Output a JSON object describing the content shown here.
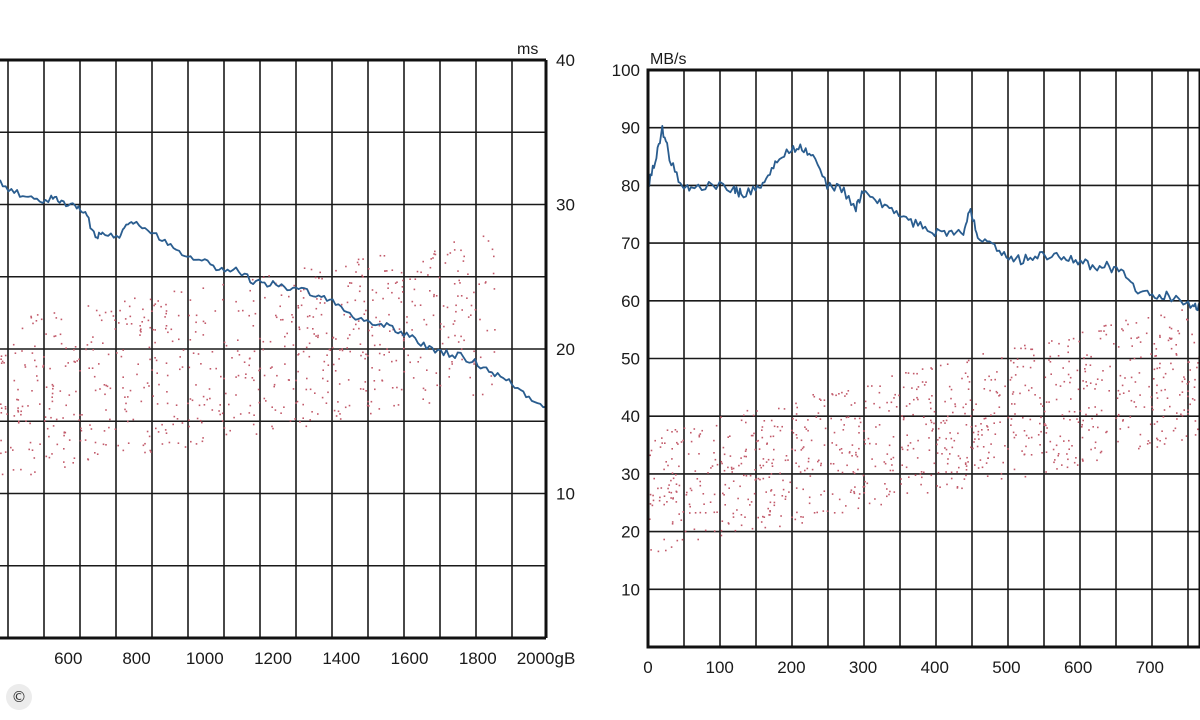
{
  "copyright_badge": "©",
  "chart_data": [
    {
      "type": "line",
      "title": "",
      "xlabel": "",
      "ylabel": "",
      "x_unit": "gB",
      "y_unit": "ms",
      "x_ticks": [
        600,
        800,
        1000,
        1200,
        1400,
        1600,
        1800,
        2000
      ],
      "x_tick_labels": [
        "600",
        "800",
        "1000",
        "1200",
        "1400",
        "1600",
        "1800",
        "2000gB"
      ],
      "highlight_tick_label": "1400",
      "xlim": [
        400,
        2000
      ],
      "y_ticks": [
        10,
        20,
        30,
        40
      ],
      "ylim": [
        0,
        40
      ],
      "y_axis_side": "right",
      "grid": true,
      "series": [
        {
          "color": "#2a5d8f",
          "style": "line",
          "x": [
            400,
            450,
            500,
            550,
            580,
            620,
            650,
            680,
            700,
            750,
            770,
            800,
            850,
            900,
            950,
            1000,
            1050,
            1100,
            1150,
            1200,
            1250,
            1300,
            1350,
            1400,
            1450,
            1500,
            1550,
            1600,
            1650,
            1700,
            1750,
            1800,
            1850,
            1900,
            1950,
            2000
          ],
          "y": [
            31.5,
            30.8,
            30.3,
            30.4,
            30.2,
            29.9,
            29.3,
            27.9,
            27.9,
            27.9,
            28.8,
            28.6,
            28.0,
            27.2,
            26.5,
            26.1,
            25.5,
            25.4,
            24.6,
            24.5,
            24.1,
            24.0,
            23.7,
            22.8,
            22.1,
            21.8,
            21.5,
            20.9,
            20.1,
            19.8,
            19.5,
            19.0,
            18.3,
            17.6,
            16.7,
            16.0
          ]
        },
        {
          "color": "#c25a6a",
          "style": "scatter",
          "x_range": [
            400,
            1850
          ],
          "y_band_start": [
            11,
            22
          ],
          "y_band_end": [
            17,
            28
          ],
          "count": 700
        }
      ]
    },
    {
      "type": "line",
      "title": "",
      "xlabel": "",
      "ylabel": "",
      "x_unit": "",
      "y_unit": "MB/s",
      "x_ticks": [
        0,
        100,
        200,
        300,
        400,
        500,
        600,
        700
      ],
      "x_tick_labels": [
        "0",
        "100",
        "200",
        "300",
        "400",
        "500",
        "600",
        "700"
      ],
      "xlim": [
        0,
        770
      ],
      "y_ticks": [
        10,
        20,
        30,
        40,
        50,
        60,
        70,
        80,
        90,
        100
      ],
      "ylim": [
        0,
        100
      ],
      "y_axis_side": "left",
      "grid": true,
      "series": [
        {
          "color": "#2a5d8f",
          "style": "line",
          "x": [
            0,
            10,
            20,
            30,
            45,
            60,
            90,
            120,
            130,
            150,
            165,
            180,
            200,
            215,
            230,
            250,
            270,
            290,
            300,
            320,
            340,
            360,
            380,
            400,
            420,
            440,
            450,
            460,
            480,
            500,
            520,
            540,
            560,
            580,
            600,
            620,
            640,
            660,
            680,
            700,
            720,
            740,
            760,
            770
          ],
          "y": [
            80,
            84,
            90,
            85,
            80,
            79.5,
            80,
            79.5,
            78.5,
            79.5,
            81,
            84,
            86.5,
            86.5,
            85,
            80,
            79.5,
            76,
            79,
            77,
            76,
            74,
            73,
            72,
            72,
            71.5,
            76,
            71.5,
            70,
            68,
            67,
            68,
            67.5,
            68,
            67,
            66,
            66,
            65,
            62,
            61,
            61,
            60,
            59,
            59
          ]
        },
        {
          "color": "#c25a6a",
          "style": "scatter",
          "x_range": [
            0,
            770
          ],
          "y_band_start": [
            16,
            37
          ],
          "y_band_end": [
            36,
            60
          ],
          "count": 900
        }
      ]
    }
  ]
}
